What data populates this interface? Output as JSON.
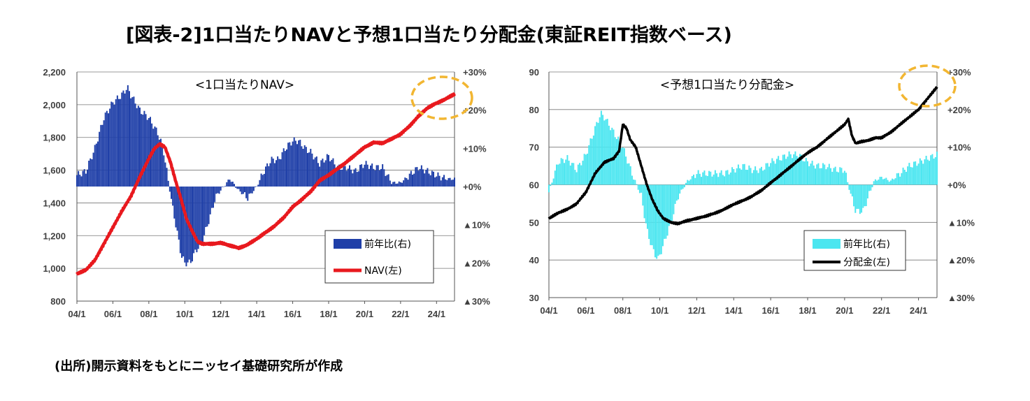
{
  "title": "[図表-2]1口当たりNAVと予想1口当たり分配金(東証REIT指数ベース)",
  "source": "(出所)開示資料をもとにニッセイ基礎研究所が作成",
  "colors": {
    "nav_bar": "#1F3FA8",
    "nav_line": "#E8191E",
    "dist_bar": "#4BE6F0",
    "dist_line": "#000000",
    "highlight": "#F2B632"
  },
  "chart_data": [
    {
      "type": "bar+line",
      "title": "<1口当たりNAV>",
      "x_ticks": [
        "04/1",
        "06/1",
        "08/1",
        "10/1",
        "12/1",
        "14/1",
        "16/1",
        "18/1",
        "20/1",
        "22/1",
        "24/1"
      ],
      "x_range": [
        2004.0,
        2025.0
      ],
      "y_left": {
        "range": [
          800,
          2200
        ],
        "ticks": [
          "800",
          "1,000",
          "1,200",
          "1,400",
          "1,600",
          "1,800",
          "2,000",
          "2,200"
        ],
        "ticks_values": [
          800,
          1000,
          1200,
          1400,
          1600,
          1800,
          2000,
          2200
        ]
      },
      "y_right": {
        "range": [
          -30,
          30
        ],
        "ticks": [
          "▲30%",
          "▲20%",
          "▲10%",
          "+0%",
          "+10%",
          "+20%",
          "+30%"
        ],
        "ticks_values": [
          -30,
          -20,
          -10,
          0,
          10,
          20,
          30
        ]
      },
      "grid": true,
      "legend_position": "bottom-right",
      "highlight": "ellipse around latest values (top-right)",
      "series": [
        {
          "name": "前年比(右)",
          "kind": "bar",
          "axis": "right",
          "points": [
            [
              2004.0,
              3
            ],
            [
              2004.5,
              4
            ],
            [
              2005.0,
              10
            ],
            [
              2005.5,
              18
            ],
            [
              2006.0,
              22
            ],
            [
              2006.5,
              24
            ],
            [
              2006.8,
              26
            ],
            [
              2007.0,
              24
            ],
            [
              2007.5,
              20
            ],
            [
              2008.0,
              18
            ],
            [
              2008.5,
              14
            ],
            [
              2008.8,
              10
            ],
            [
              2009.0,
              4
            ],
            [
              2009.3,
              -5
            ],
            [
              2009.5,
              -10
            ],
            [
              2009.8,
              -18
            ],
            [
              2010.0,
              -20
            ],
            [
              2010.3,
              -20
            ],
            [
              2010.6,
              -17
            ],
            [
              2011.0,
              -14
            ],
            [
              2011.4,
              -8
            ],
            [
              2011.7,
              -3
            ],
            [
              2012.0,
              -1
            ],
            [
              2012.5,
              2
            ],
            [
              2013.0,
              -1
            ],
            [
              2013.5,
              -3
            ],
            [
              2014.0,
              0
            ],
            [
              2014.4,
              4
            ],
            [
              2014.8,
              7
            ],
            [
              2015.2,
              7
            ],
            [
              2015.6,
              10
            ],
            [
              2016.0,
              12
            ],
            [
              2016.3,
              12
            ],
            [
              2016.7,
              10
            ],
            [
              2017.0,
              9
            ],
            [
              2017.5,
              6
            ],
            [
              2018.0,
              8
            ],
            [
              2018.5,
              5
            ],
            [
              2019.0,
              5
            ],
            [
              2019.5,
              4
            ],
            [
              2020.0,
              6
            ],
            [
              2020.5,
              5
            ],
            [
              2021.0,
              5
            ],
            [
              2021.5,
              1
            ],
            [
              2022.0,
              1
            ],
            [
              2022.5,
              3
            ],
            [
              2023.0,
              5
            ],
            [
              2023.5,
              4
            ],
            [
              2024.0,
              3
            ],
            [
              2024.5,
              2
            ],
            [
              2025.0,
              2
            ]
          ]
        },
        {
          "name": "NAV(左)",
          "kind": "line",
          "axis": "left",
          "points": [
            [
              2004.0,
              965
            ],
            [
              2004.5,
              990
            ],
            [
              2005.0,
              1050
            ],
            [
              2005.5,
              1150
            ],
            [
              2006.0,
              1250
            ],
            [
              2006.5,
              1350
            ],
            [
              2007.0,
              1440
            ],
            [
              2007.5,
              1560
            ],
            [
              2008.0,
              1670
            ],
            [
              2008.3,
              1730
            ],
            [
              2008.6,
              1760
            ],
            [
              2008.9,
              1740
            ],
            [
              2009.2,
              1650
            ],
            [
              2009.5,
              1530
            ],
            [
              2009.8,
              1420
            ],
            [
              2010.1,
              1300
            ],
            [
              2010.4,
              1230
            ],
            [
              2010.7,
              1165
            ],
            [
              2011.0,
              1150
            ],
            [
              2011.5,
              1150
            ],
            [
              2012.0,
              1155
            ],
            [
              2012.5,
              1140
            ],
            [
              2013.0,
              1125
            ],
            [
              2013.5,
              1145
            ],
            [
              2014.0,
              1180
            ],
            [
              2014.5,
              1220
            ],
            [
              2015.0,
              1260
            ],
            [
              2015.5,
              1310
            ],
            [
              2016.0,
              1375
            ],
            [
              2016.5,
              1420
            ],
            [
              2017.0,
              1470
            ],
            [
              2017.5,
              1535
            ],
            [
              2018.0,
              1570
            ],
            [
              2018.5,
              1610
            ],
            [
              2019.0,
              1650
            ],
            [
              2019.5,
              1695
            ],
            [
              2020.0,
              1740
            ],
            [
              2020.5,
              1770
            ],
            [
              2021.0,
              1765
            ],
            [
              2021.5,
              1790
            ],
            [
              2022.0,
              1820
            ],
            [
              2022.5,
              1870
            ],
            [
              2023.0,
              1930
            ],
            [
              2023.5,
              1980
            ],
            [
              2024.0,
              2010
            ],
            [
              2024.5,
              2035
            ],
            [
              2025.0,
              2065
            ]
          ]
        }
      ]
    },
    {
      "type": "bar+line",
      "title": "<予想1口当たり分配金>",
      "x_ticks": [
        "04/1",
        "06/1",
        "08/1",
        "10/1",
        "12/1",
        "14/1",
        "16/1",
        "18/1",
        "20/1",
        "22/1",
        "24/1"
      ],
      "x_range": [
        2004.0,
        2025.0
      ],
      "y_left": {
        "range": [
          30,
          90
        ],
        "ticks": [
          "30",
          "40",
          "50",
          "60",
          "70",
          "80",
          "90"
        ],
        "ticks_values": [
          30,
          40,
          50,
          60,
          70,
          80,
          90
        ]
      },
      "y_right": {
        "range": [
          -30,
          30
        ],
        "ticks": [
          "▲30%",
          "▲20%",
          "▲10%",
          "+0%",
          "+10%",
          "+20%",
          "+30%"
        ],
        "ticks_values": [
          -30,
          -20,
          -10,
          0,
          10,
          20,
          30
        ]
      },
      "grid": true,
      "legend_position": "bottom-right",
      "highlight": "ellipse around latest values (top-right)",
      "series": [
        {
          "name": "前年比(右)",
          "kind": "bar",
          "axis": "right",
          "points": [
            [
              2004.0,
              -2
            ],
            [
              2004.5,
              6
            ],
            [
              2005.0,
              7
            ],
            [
              2005.5,
              4
            ],
            [
              2006.0,
              8
            ],
            [
              2006.5,
              15
            ],
            [
              2006.8,
              19
            ],
            [
              2007.0,
              18
            ],
            [
              2007.5,
              14
            ],
            [
              2008.0,
              10
            ],
            [
              2008.5,
              3
            ],
            [
              2009.0,
              -3
            ],
            [
              2009.3,
              -12
            ],
            [
              2009.6,
              -17
            ],
            [
              2009.9,
              -20
            ],
            [
              2010.2,
              -16
            ],
            [
              2010.6,
              -10
            ],
            [
              2011.0,
              -3
            ],
            [
              2011.5,
              1
            ],
            [
              2012.0,
              3
            ],
            [
              2012.5,
              3
            ],
            [
              2013.0,
              3
            ],
            [
              2013.5,
              3
            ],
            [
              2014.0,
              4
            ],
            [
              2014.5,
              5
            ],
            [
              2015.0,
              4
            ],
            [
              2015.5,
              4
            ],
            [
              2016.0,
              6
            ],
            [
              2016.5,
              7
            ],
            [
              2017.0,
              8
            ],
            [
              2017.5,
              8
            ],
            [
              2018.0,
              6
            ],
            [
              2018.5,
              5
            ],
            [
              2019.0,
              5
            ],
            [
              2019.5,
              4
            ],
            [
              2020.0,
              4
            ],
            [
              2020.3,
              -2
            ],
            [
              2020.6,
              -7
            ],
            [
              2021.0,
              -7
            ],
            [
              2021.3,
              -3
            ],
            [
              2021.6,
              1
            ],
            [
              2022.0,
              2
            ],
            [
              2022.5,
              1
            ],
            [
              2023.0,
              3
            ],
            [
              2023.5,
              5
            ],
            [
              2024.0,
              6
            ],
            [
              2024.5,
              7
            ],
            [
              2025.0,
              8
            ]
          ]
        },
        {
          "name": "分配金(左)",
          "kind": "line",
          "axis": "left",
          "points": [
            [
              2004.0,
              51
            ],
            [
              2004.5,
              52.5
            ],
            [
              2005.0,
              53.5
            ],
            [
              2005.5,
              55
            ],
            [
              2006.0,
              58
            ],
            [
              2006.5,
              63
            ],
            [
              2007.0,
              66
            ],
            [
              2007.5,
              67
            ],
            [
              2007.8,
              69
            ],
            [
              2008.0,
              76
            ],
            [
              2008.2,
              75
            ],
            [
              2008.4,
              72
            ],
            [
              2008.7,
              70
            ],
            [
              2009.0,
              65
            ],
            [
              2009.3,
              60
            ],
            [
              2009.6,
              56
            ],
            [
              2009.9,
              53
            ],
            [
              2010.2,
              51
            ],
            [
              2010.6,
              50
            ],
            [
              2011.0,
              49.7
            ],
            [
              2011.5,
              50.5
            ],
            [
              2012.0,
              51
            ],
            [
              2012.5,
              51.7
            ],
            [
              2013.0,
              52.5
            ],
            [
              2013.5,
              53.5
            ],
            [
              2014.0,
              54.8
            ],
            [
              2014.5,
              55.8
            ],
            [
              2015.0,
              57
            ],
            [
              2015.5,
              58.5
            ],
            [
              2016.0,
              60.5
            ],
            [
              2016.5,
              62.5
            ],
            [
              2017.0,
              64.5
            ],
            [
              2017.5,
              66.5
            ],
            [
              2018.0,
              68.5
            ],
            [
              2018.5,
              70
            ],
            [
              2019.0,
              72
            ],
            [
              2019.5,
              74
            ],
            [
              2020.0,
              76
            ],
            [
              2020.2,
              77.5
            ],
            [
              2020.4,
              73
            ],
            [
              2020.6,
              71
            ],
            [
              2020.9,
              71.5
            ],
            [
              2021.3,
              71.8
            ],
            [
              2021.7,
              72.5
            ],
            [
              2022.0,
              72.5
            ],
            [
              2022.5,
              74
            ],
            [
              2023.0,
              76
            ],
            [
              2023.5,
              78
            ],
            [
              2024.0,
              80
            ],
            [
              2024.5,
              83
            ],
            [
              2025.0,
              86
            ]
          ]
        }
      ]
    }
  ]
}
